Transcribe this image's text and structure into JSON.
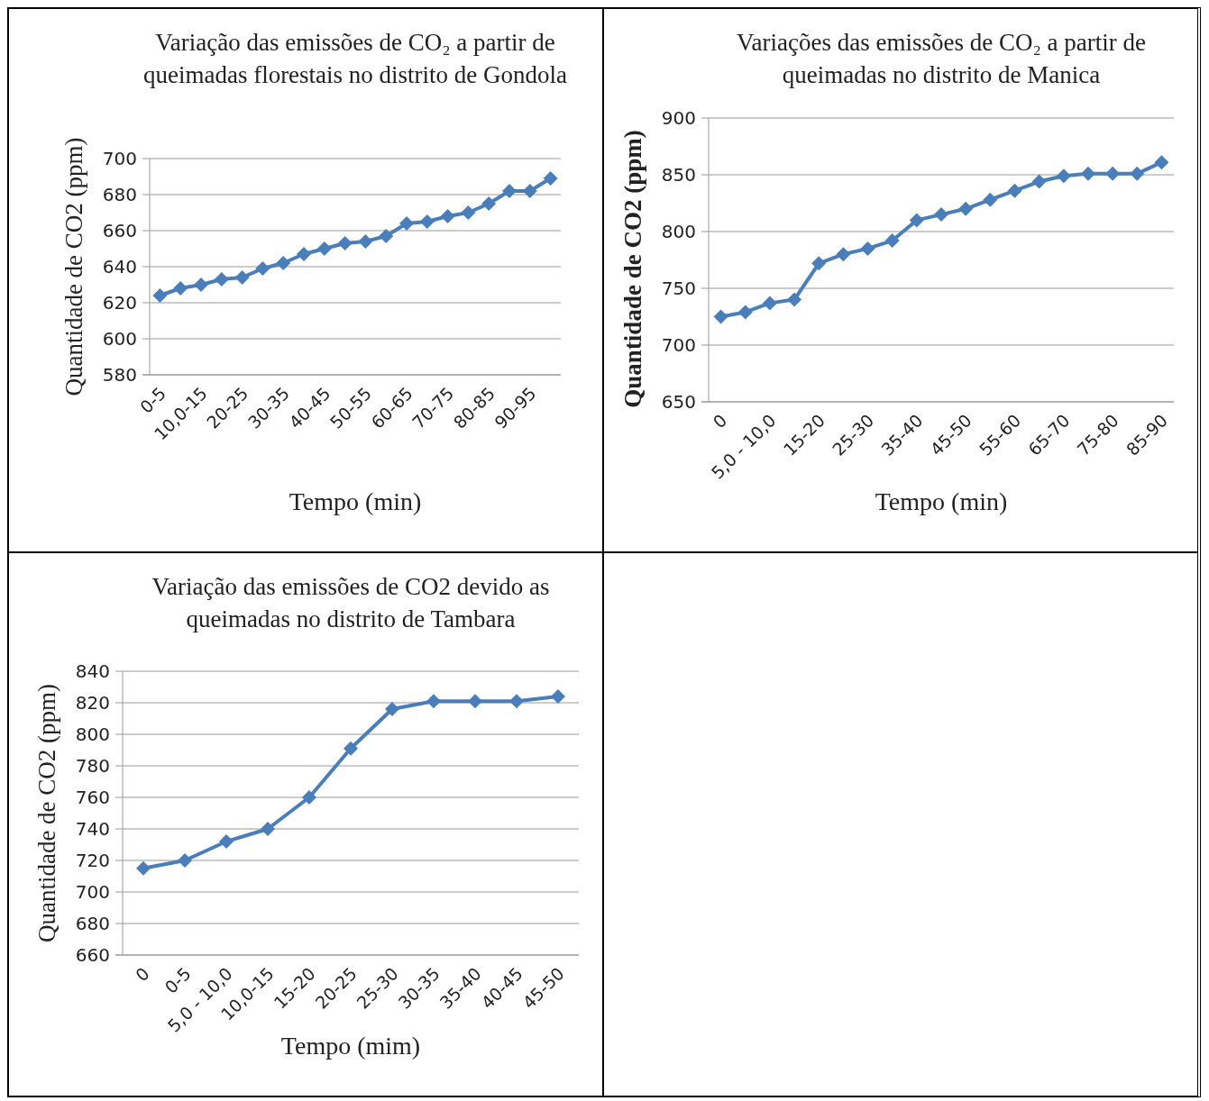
{
  "chart_data": [
    {
      "type": "line",
      "title": "Variação das emissões de CO₂ a partir de queimadas florestais no distrito de Gondola",
      "xlabel": "Tempo (min)",
      "ylabel": "Quantidade de CO2 (ppm)",
      "categories": [
        "0-5",
        null,
        "10,0-15",
        null,
        "20-25",
        null,
        "30-35",
        null,
        "40-45",
        null,
        "50-55",
        null,
        "60-65",
        null,
        "70-75",
        null,
        "80-85",
        null,
        "90-95",
        null
      ],
      "series": [
        {
          "color": "#4a7ebb",
          "values": [
            624,
            628,
            630,
            633,
            634,
            639,
            642,
            647,
            650,
            653,
            654,
            657,
            664,
            665,
            668,
            670,
            675,
            682,
            682,
            689
          ]
        }
      ],
      "ylim": [
        580,
        700
      ],
      "yticks": [
        580,
        600,
        620,
        640,
        660,
        680,
        700
      ],
      "grid": "y",
      "marker": "diamond"
    },
    {
      "type": "line",
      "title": "Variações das emissões de CO₂ a partir de queimadas no distrito de Manica",
      "xlabel": "Tempo (min)",
      "ylabel": "Quantidade de CO2  (ppm)",
      "categories": [
        "0",
        null,
        "5,0 - 10,0",
        null,
        "15-20",
        null,
        "25-30",
        null,
        "35-40",
        null,
        "45-50",
        null,
        "55-60",
        null,
        "65-70",
        null,
        "75-80",
        null,
        "85-90"
      ],
      "series": [
        {
          "color": "#4a7ebb",
          "values": [
            725,
            729,
            737,
            740,
            772,
            780,
            785,
            792,
            810,
            815,
            820,
            828,
            836,
            844,
            849,
            851,
            851,
            851,
            861
          ]
        }
      ],
      "ylim": [
        650,
        900
      ],
      "yticks": [
        650,
        700,
        750,
        800,
        850,
        900
      ],
      "grid": "y",
      "marker": "diamond"
    },
    {
      "type": "line",
      "title": "Variação das emissões de CO2  devido as queimadas no distrito de Tambara",
      "xlabel": "Tempo (mim)",
      "ylabel": "Quantidade de CO2 (ppm)",
      "categories": [
        "0",
        "0-5",
        "5,0 - 10,0",
        "10,0-15",
        "15-20",
        "20-25",
        "25-30",
        "30-35",
        "35-40",
        "40-45",
        "45-50"
      ],
      "series": [
        {
          "color": "#4a7ebb",
          "values": [
            715,
            720,
            732,
            740,
            760,
            791,
            816,
            821,
            821,
            821,
            824
          ]
        }
      ],
      "ylim": [
        660,
        840
      ],
      "yticks": [
        660,
        680,
        700,
        720,
        740,
        760,
        780,
        800,
        820,
        840
      ],
      "grid": "y",
      "marker": "diamond"
    }
  ]
}
